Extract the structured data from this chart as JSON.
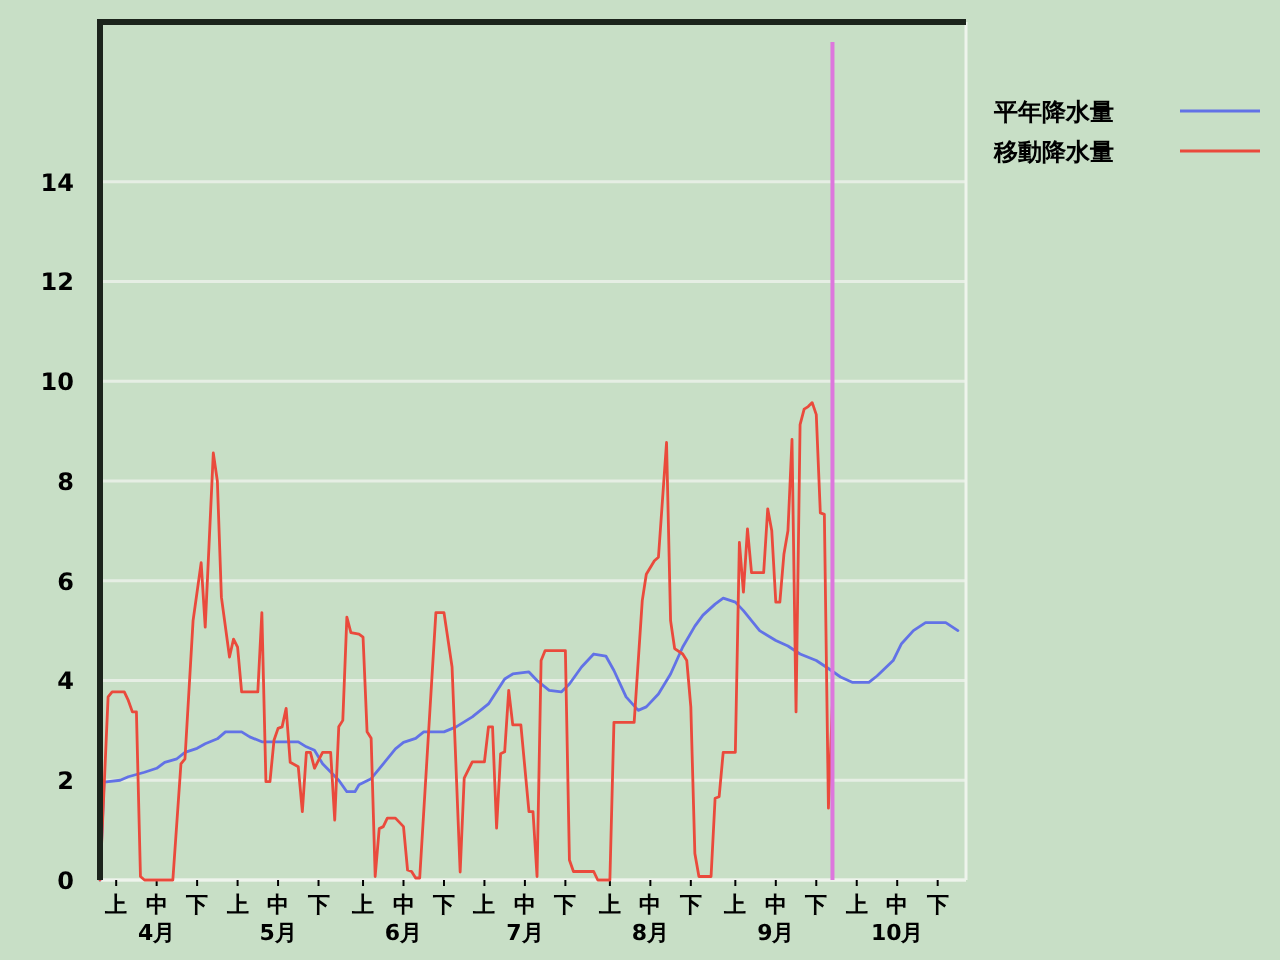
{
  "chart_data": {
    "type": "line",
    "xlim": [
      "--04-01",
      "--11-01"
    ],
    "xticks": [
      {
        "value": "--04-05",
        "label": "上"
      },
      {
        "value": "--04-15",
        "label": "中\n4月"
      },
      {
        "value": "--04-25",
        "label": "下"
      },
      {
        "value": "--05-05",
        "label": "上"
      },
      {
        "value": "--05-15",
        "label": "中\n5月"
      },
      {
        "value": "--05-25",
        "label": "下"
      },
      {
        "value": "--06-05",
        "label": "上"
      },
      {
        "value": "--06-15",
        "label": "中\n6月"
      },
      {
        "value": "--06-25",
        "label": "下"
      },
      {
        "value": "--07-05",
        "label": "上"
      },
      {
        "value": "--07-15",
        "label": "中\n7月"
      },
      {
        "value": "--07-25",
        "label": "下"
      },
      {
        "value": "--08-05",
        "label": "上"
      },
      {
        "value": "--08-15",
        "label": "中\n8月"
      },
      {
        "value": "--08-25",
        "label": "下"
      },
      {
        "value": "--09-05",
        "label": "上"
      },
      {
        "value": "--09-15",
        "label": "中\n9月"
      },
      {
        "value": "--09-25",
        "label": "下"
      },
      {
        "value": "--10-05",
        "label": "上"
      },
      {
        "value": "--10-15",
        "label": "中\n10月"
      },
      {
        "value": "--10-25",
        "label": "下"
      }
    ],
    "ylim": [
      0,
      17.2
    ],
    "yticks": [
      0,
      2,
      4,
      6,
      8,
      10,
      12,
      14
    ],
    "grid": "y",
    "legend": "top right",
    "ref_lines": [
      {
        "axis": "x",
        "value": "--09-29",
        "color": "#dd77dd"
      }
    ],
    "series": [
      {
        "name": "平年降水量",
        "color": "#6272e6",
        "x": [
          "--04-01",
          "--04-02",
          "--04-06",
          "--04-08",
          "--04-12",
          "--04-15",
          "--04-17",
          "--04-20",
          "--04-22",
          "--04-25",
          "--04-27",
          "--04-30",
          "--05-02",
          "--05-06",
          "--05-08",
          "--05-11",
          "--05-20",
          "--05-22",
          "--05-24",
          "--05-26",
          "--05-30",
          "--06-01",
          "--06-03",
          "--06-04",
          "--06-07",
          "--06-10",
          "--06-13",
          "--06-15",
          "--06-18",
          "--06-20",
          "--06-25",
          "--06-28",
          "--07-02",
          "--07-06",
          "--07-10",
          "--07-12",
          "--07-16",
          "--07-18",
          "--07-21",
          "--07-24",
          "--07-26",
          "--07-29",
          "--08-01",
          "--08-04",
          "--08-06",
          "--08-09",
          "--08-12",
          "--08-14",
          "--08-17",
          "--08-20",
          "--08-23",
          "--08-26",
          "--08-28",
          "--08-31",
          "--09-02",
          "--09-05",
          "--09-07",
          "--09-11",
          "--09-15",
          "--09-18",
          "--09-21",
          "--09-25",
          "--09-28",
          "--10-01",
          "--10-04",
          "--10-08",
          "--10-10",
          "--10-14",
          "--10-16",
          "--10-19",
          "--10-22",
          "--10-27",
          "--10-30"
        ],
        "values": [
          0,
          1.96,
          2.0,
          2.07,
          2.16,
          2.24,
          2.36,
          2.43,
          2.56,
          2.64,
          2.73,
          2.83,
          2.97,
          2.97,
          2.87,
          2.77,
          2.77,
          2.67,
          2.6,
          2.33,
          2.0,
          1.77,
          1.77,
          1.91,
          2.03,
          2.33,
          2.63,
          2.76,
          2.84,
          2.97,
          2.97,
          3.07,
          3.27,
          3.53,
          4.03,
          4.13,
          4.17,
          4.0,
          3.8,
          3.77,
          3.93,
          4.27,
          4.53,
          4.49,
          4.2,
          3.67,
          3.4,
          3.47,
          3.73,
          4.13,
          4.67,
          5.09,
          5.31,
          5.53,
          5.65,
          5.57,
          5.4,
          5.0,
          4.8,
          4.69,
          4.53,
          4.4,
          4.24,
          4.07,
          3.96,
          3.96,
          4.09,
          4.4,
          4.73,
          5.0,
          5.16,
          5.16,
          5.0
        ]
      },
      {
        "name": "移動降水量",
        "color": "#ea4a3c",
        "x": [
          "--04-01",
          "--04-03",
          "--04-04",
          "--04-07",
          "--04-08",
          "--04-09",
          "--04-10",
          "--04-11",
          "--04-12",
          "--04-19",
          "--04-21",
          "--04-22",
          "--04-24",
          "--04-26",
          "--04-27",
          "--04-29",
          "--04-30",
          "--05-01",
          "--05-03",
          "--05-04",
          "--05-05",
          "--05-06",
          "--05-10",
          "--05-11",
          "--05-12",
          "--05-13",
          "--05-14",
          "--05-15",
          "--05-16",
          "--05-17",
          "--05-18",
          "--05-20",
          "--05-21",
          "--05-22",
          "--05-23",
          "--05-24",
          "--05-26",
          "--05-28",
          "--05-29",
          "--05-30",
          "--05-31",
          "--06-01",
          "--06-02",
          "--06-04",
          "--06-05",
          "--06-06",
          "--06-07",
          "--06-08",
          "--06-09",
          "--06-10",
          "--06-11",
          "--06-13",
          "--06-15",
          "--06-16",
          "--06-17",
          "--06-18",
          "--06-19",
          "--06-23",
          "--06-25",
          "--06-27",
          "--06-29",
          "--06-30",
          "--07-02",
          "--07-05",
          "--07-06",
          "--07-07",
          "--07-08",
          "--07-09",
          "--07-10",
          "--07-11",
          "--07-12",
          "--07-14",
          "--07-16",
          "--07-17",
          "--07-18",
          "--07-19",
          "--07-20",
          "--07-25",
          "--07-26",
          "--07-27",
          "--08-01",
          "--08-02",
          "--08-05",
          "--08-06",
          "--08-11",
          "--08-13",
          "--08-14",
          "--08-16",
          "--08-17",
          "--08-19",
          "--08-20",
          "--08-21",
          "--08-23",
          "--08-24",
          "--08-25",
          "--08-26",
          "--08-27",
          "--08-30",
          "--08-31",
          "--09-01",
          "--09-02",
          "--09-05",
          "--09-06",
          "--09-07",
          "--09-08",
          "--09-09",
          "--09-12",
          "--09-13",
          "--09-14",
          "--09-15",
          "--09-16",
          "--09-17",
          "--09-18",
          "--09-19",
          "--09-20",
          "--09-21",
          "--09-22",
          "--09-23",
          "--09-24",
          "--09-25",
          "--09-26",
          "--09-27",
          "--09-28",
          "--09-29"
        ],
        "values": [
          0,
          3.67,
          3.77,
          3.77,
          3.6,
          3.37,
          3.37,
          0.07,
          0,
          0,
          2.33,
          2.43,
          5.2,
          6.36,
          5.07,
          8.56,
          8.0,
          5.67,
          4.47,
          4.83,
          4.67,
          3.77,
          3.77,
          5.36,
          1.97,
          1.97,
          2.8,
          3.04,
          3.07,
          3.44,
          2.36,
          2.27,
          1.37,
          2.56,
          2.56,
          2.24,
          2.56,
          2.56,
          1.2,
          3.07,
          3.2,
          5.27,
          4.96,
          4.93,
          4.87,
          2.97,
          2.84,
          0.07,
          1.03,
          1.07,
          1.24,
          1.24,
          1.07,
          0.2,
          0.17,
          0.04,
          0.04,
          5.36,
          5.36,
          4.27,
          0.16,
          2.04,
          2.37,
          2.37,
          3.07,
          3.07,
          1.04,
          2.53,
          2.57,
          3.8,
          3.11,
          3.11,
          1.37,
          1.37,
          0.07,
          4.4,
          4.6,
          4.6,
          0.4,
          0.17,
          0.17,
          0,
          0,
          3.16,
          3.16,
          5.6,
          6.13,
          6.4,
          6.47,
          8.77,
          5.2,
          4.64,
          4.53,
          4.4,
          3.47,
          0.53,
          0.07,
          0.07,
          1.64,
          1.67,
          2.56,
          2.56,
          6.77,
          5.77,
          7.04,
          6.16,
          6.16,
          7.44,
          7.0,
          5.57,
          5.57,
          6.53,
          7.0,
          8.83,
          3.37,
          9.13,
          9.44,
          9.49,
          9.57,
          9.33,
          7.36,
          7.33,
          1.44,
          3.53
        ]
      }
    ]
  }
}
